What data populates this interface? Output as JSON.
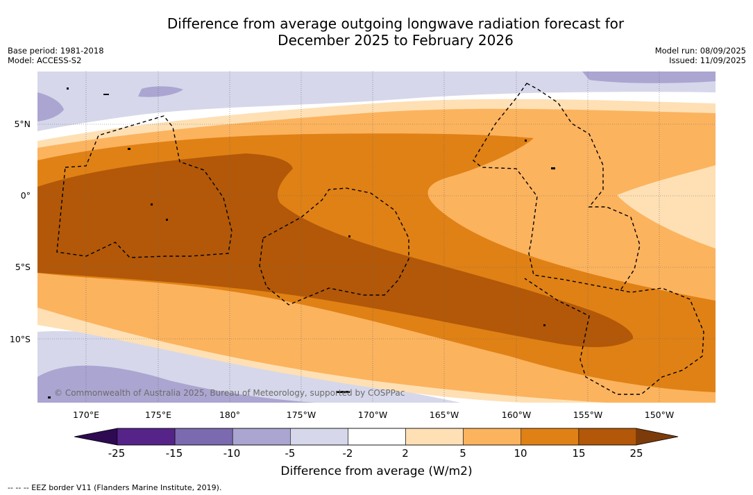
{
  "title_line1": "Difference from average outgoing longwave radiation forecast for",
  "title_line2": "December 2025 to February 2026",
  "meta_left": [
    "Base period: 1981-2018",
    "Model: ACCESS-S2"
  ],
  "meta_right": [
    "Model run: 08/09/2025",
    "Issued: 11/09/2025"
  ],
  "lat_labels": [
    "5°N",
    "0°",
    "5°S",
    "10°S"
  ],
  "lon_labels": [
    "170°E",
    "175°E",
    "180°",
    "175°W",
    "170°W",
    "165°W",
    "160°W",
    "155°W",
    "150°W"
  ],
  "copyright": "© Commonwealth of Australia 2025, Bureau of Meteorology, supported by COSPPac",
  "colorbar": {
    "title": "Difference from average (W/m2)",
    "labels": [
      "-25",
      "-15",
      "-10",
      "-5",
      "-2",
      "2",
      "5",
      "10",
      "15",
      "25"
    ],
    "colors": [
      "#2d0a52",
      "#562489",
      "#7b6aaf",
      "#aba5d1",
      "#d6d7ea",
      "#ffffff",
      "#fee0b4",
      "#fcb35e",
      "#e08115",
      "#b25808",
      "#7c3b0a"
    ]
  },
  "footer": "--  --  -- EEZ border V11 (Flanders Marine Institute, 2019)."
}
